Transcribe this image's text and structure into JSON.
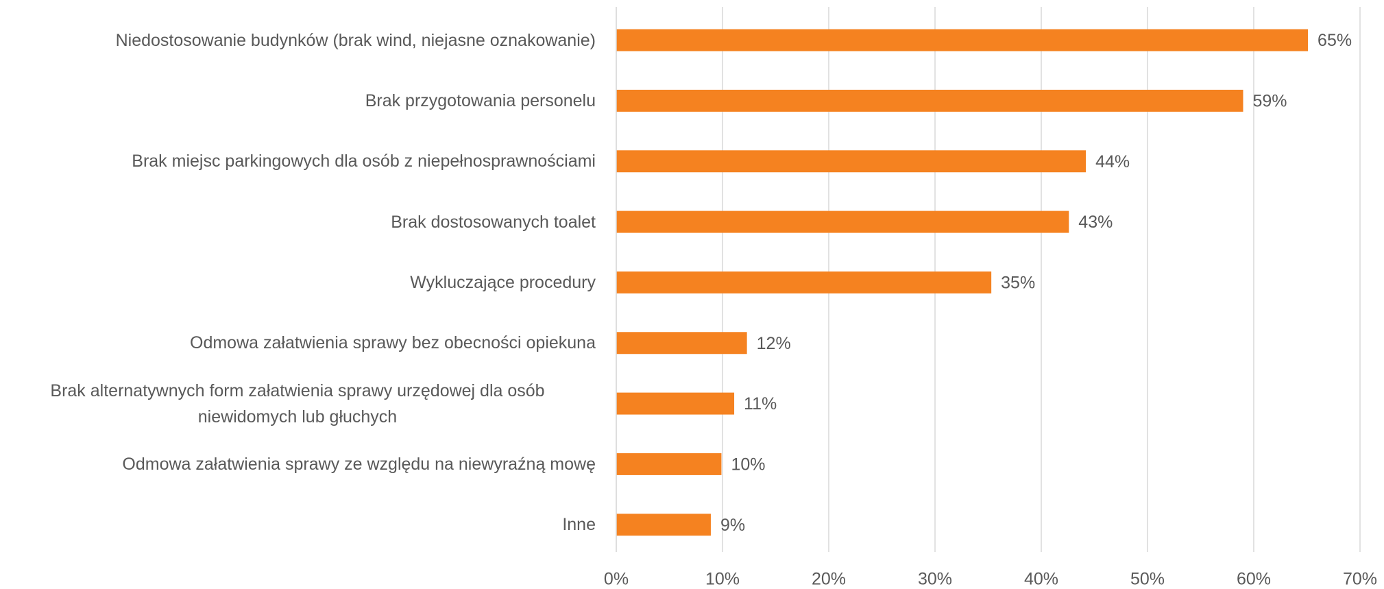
{
  "chart_data": {
    "type": "hbar",
    "categories": [
      "Niedostosowanie budynków (brak wind, niejasne oznakowanie)",
      "Brak przygotowania personelu",
      "Brak miejsc parkingowych dla osób z niepełnosprawnościami",
      "Brak dostosowanych toalet",
      "Wykluczające procedury",
      "Odmowa załatwienia sprawy bez obecności opiekuna",
      "Brak alternatywnych form załatwienia sprawy urzędowej dla osób niewidomych lub głuchych",
      "Odmowa załatwienia sprawy ze względu na niewyraźną mowę",
      "Inne"
    ],
    "values": [
      65.1,
      59.0,
      44.2,
      42.6,
      35.3,
      12.3,
      11.1,
      9.9,
      8.9
    ],
    "value_labels": [
      "65%",
      "59%",
      "44%",
      "43%",
      "35%",
      "12%",
      "11%",
      "10%",
      "9%"
    ],
    "color": "#f58220",
    "xlim": [
      0,
      70
    ],
    "xticks": [
      {
        "value": 0,
        "label": "0%"
      },
      {
        "value": 10,
        "label": "10%"
      },
      {
        "value": 20,
        "label": "20%"
      },
      {
        "value": 30,
        "label": "30%"
      },
      {
        "value": 40,
        "label": "40%"
      },
      {
        "value": 50,
        "label": "50%"
      },
      {
        "value": 60,
        "label": "60%"
      },
      {
        "value": 70,
        "label": "70%"
      }
    ],
    "grid": true
  }
}
